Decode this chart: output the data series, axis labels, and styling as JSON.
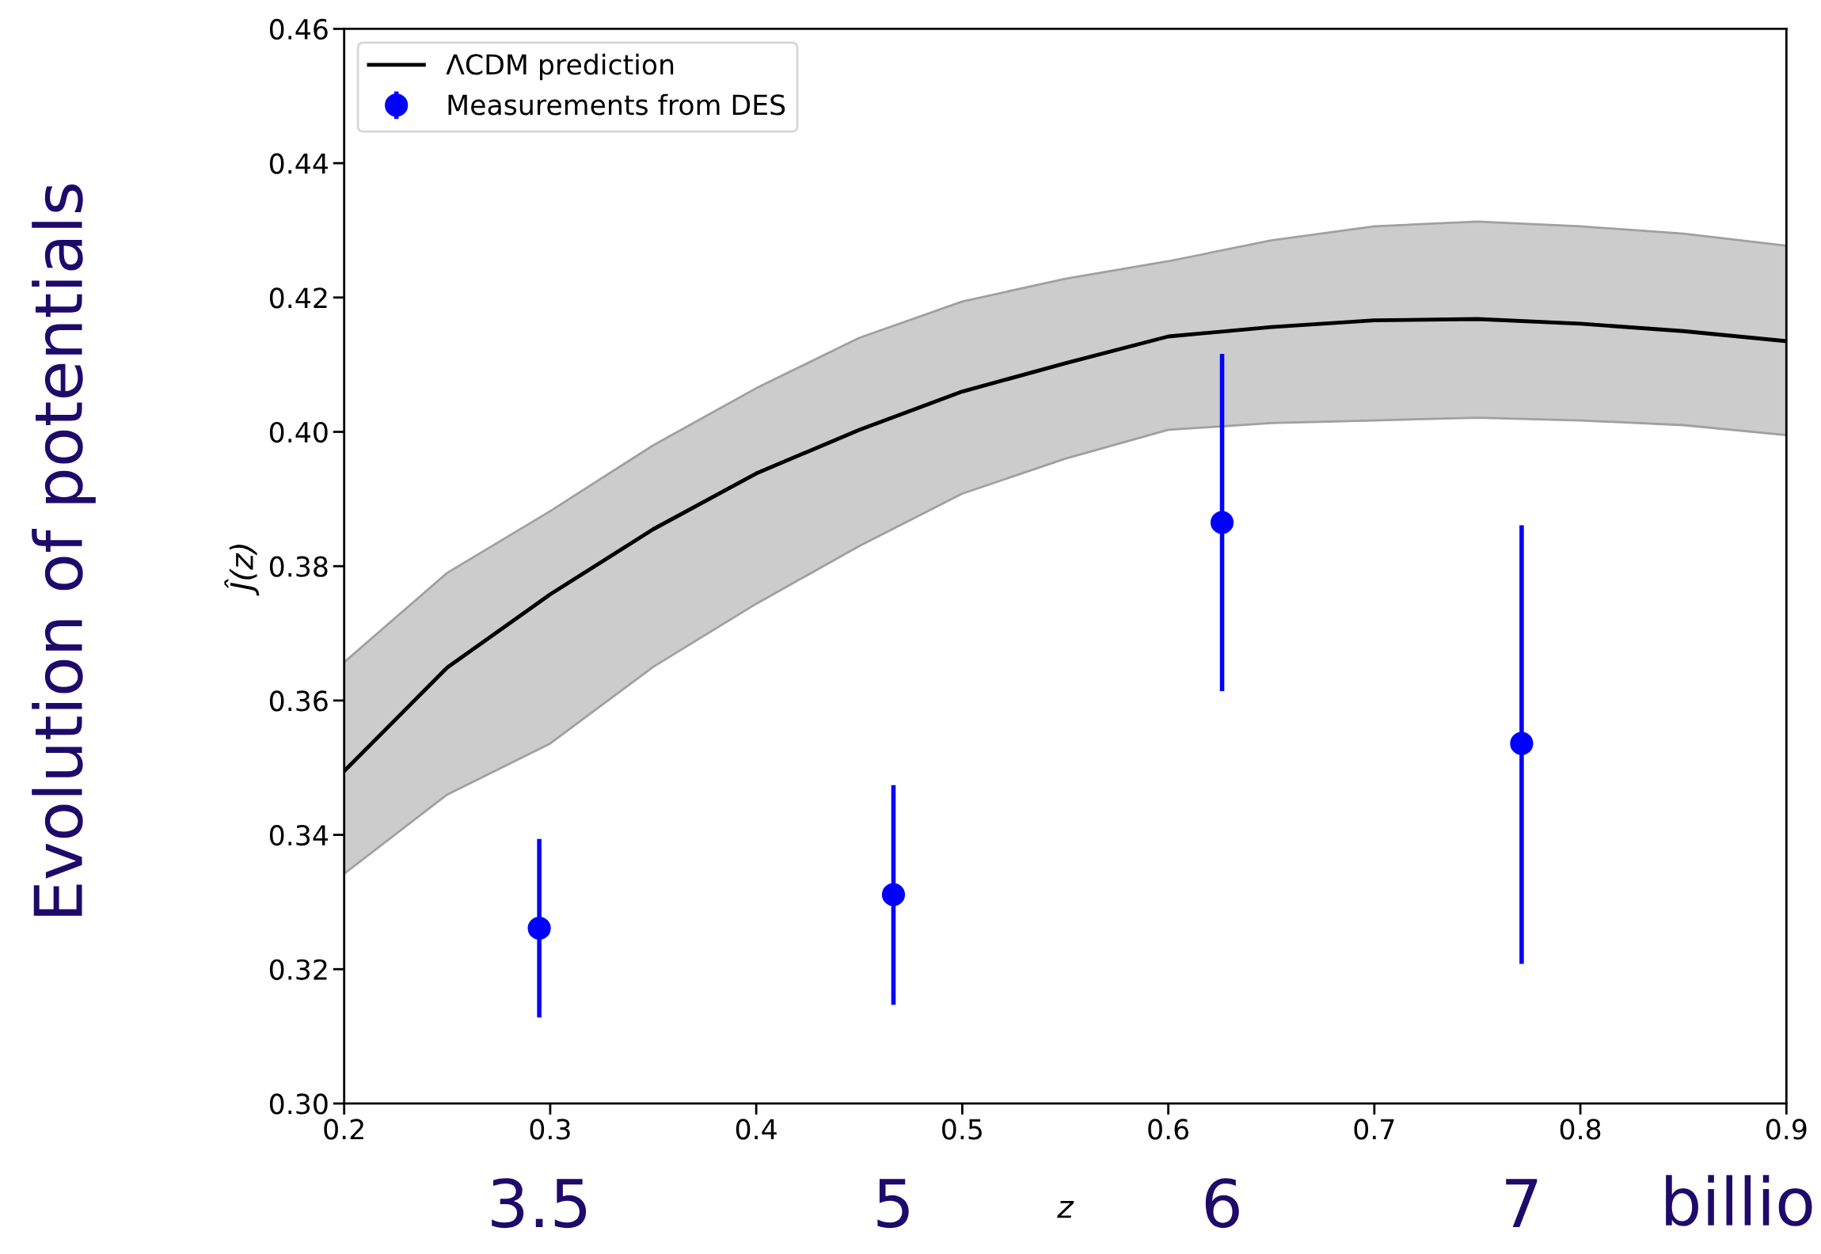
{
  "chart_data": {
    "type": "line",
    "xlabel": "z",
    "ylabel": "Ĵ(z)",
    "annotations": [
      "Evolution of potentials",
      "billio",
      "3.5",
      "5",
      "6",
      "7"
    ],
    "series": [
      {
        "name": "ΛCDM prediction",
        "color": "#000000",
        "x": [
          0.2,
          0.25,
          0.3,
          0.35,
          0.4,
          0.45,
          0.5,
          0.55,
          0.6,
          0.65,
          0.7,
          0.75,
          0.8,
          0.85,
          0.9
        ],
        "values": [
          0.3495,
          0.3649,
          0.3758,
          0.3855,
          0.3938,
          0.4003,
          0.406,
          0.4102,
          0.4142,
          0.4156,
          0.4166,
          0.4168,
          0.4161,
          0.415,
          0.4135
        ],
        "lower": [
          0.3342,
          0.346,
          0.3536,
          0.365,
          0.3744,
          0.383,
          0.3908,
          0.396,
          0.4003,
          0.4013,
          0.4017,
          0.4021,
          0.4017,
          0.401,
          0.3995
        ],
        "upper": [
          0.3657,
          0.379,
          0.3882,
          0.398,
          0.4065,
          0.414,
          0.4194,
          0.4228,
          0.4254,
          0.4285,
          0.4306,
          0.4313,
          0.4306,
          0.4295,
          0.4277
        ]
      },
      {
        "name": "Measurements from DES",
        "type": "scatter",
        "color": "#0000ff",
        "marker": "circle",
        "x": [
          0.2947,
          0.4666,
          0.6261,
          0.7715
        ],
        "values": [
          0.3261,
          0.3311,
          0.3865,
          0.3536
        ],
        "errors": [
          [
            0.3128,
            0.3394
          ],
          [
            0.3147,
            0.3474
          ],
          [
            0.3614,
            0.4116
          ],
          [
            0.3208,
            0.3861
          ]
        ]
      }
    ],
    "xlim": [
      0.2,
      0.9
    ],
    "xticks": [
      0.2,
      0.3,
      0.4,
      0.5,
      0.6,
      0.7,
      0.8,
      0.9
    ],
    "ylim": [
      0.3,
      0.46
    ],
    "yticks": [
      {
        "value": 0.3,
        "label": "0.30"
      },
      0.32,
      0.34,
      0.36,
      0.38,
      {
        "value": 0.4,
        "label": "0.40"
      },
      0.42,
      0.44,
      0.46
    ],
    "grid": false,
    "legend": "top left"
  }
}
